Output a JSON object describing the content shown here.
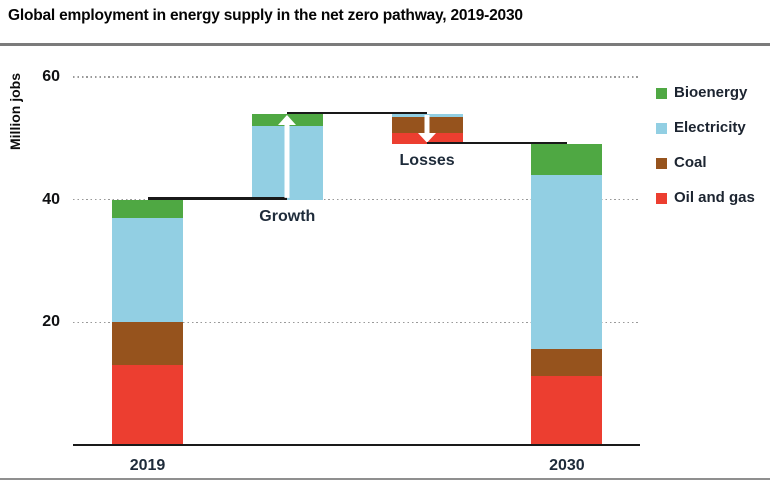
{
  "title": "Global employment in energy supply in the net zero pathway, 2019-2030",
  "chart_data": {
    "type": "bar",
    "subtype": "stacked-waterfall",
    "title": "Global employment in energy supply in the net zero pathway, 2019-2030",
    "ylabel": "Million jobs",
    "xlabel": "",
    "ylim": [
      0,
      60
    ],
    "yticks": [
      20,
      40,
      60
    ],
    "grid": "horizontal-dotted",
    "legend_position": "right",
    "legend": [
      "Bioenergy",
      "Electricity",
      "Coal",
      "Oil and gas"
    ],
    "series_colors": {
      "Bioenergy": "#4fa843",
      "Electricity": "#92cfe3",
      "Coal": "#96531d",
      "Oil and gas": "#ec3e30"
    },
    "bars": [
      {
        "axis_label": "2019",
        "annotation": null,
        "arrow": null,
        "base": 0,
        "total": 40,
        "segments": [
          [
            "Oil and gas",
            13
          ],
          [
            "Coal",
            7
          ],
          [
            "Electricity",
            17
          ],
          [
            "Bioenergy",
            3
          ]
        ]
      },
      {
        "axis_label": null,
        "annotation": "Growth",
        "arrow": "up",
        "base": 40,
        "total": 54,
        "segments": [
          [
            "Electricity",
            12
          ],
          [
            "Bioenergy",
            2
          ]
        ]
      },
      {
        "axis_label": null,
        "annotation": "Losses",
        "arrow": "down",
        "base": 49,
        "total": 54,
        "segments": [
          [
            "Oil and gas",
            1.8
          ],
          [
            "Coal",
            2.6
          ],
          [
            "Electricity",
            0.6
          ]
        ]
      },
      {
        "axis_label": "2030",
        "annotation": null,
        "arrow": null,
        "base": 0,
        "total": 49,
        "segments": [
          [
            "Oil and gas",
            11.2
          ],
          [
            "Coal",
            4.4
          ],
          [
            "Electricity",
            28.4
          ],
          [
            "Bioenergy",
            5
          ]
        ]
      }
    ],
    "connectors": [
      {
        "level": 40,
        "from": 0,
        "to": 1
      },
      {
        "level": 54,
        "from": 1,
        "to": 2
      },
      {
        "level": 49,
        "from": 2,
        "to": 3
      }
    ],
    "arrow_color": "#ffffff",
    "connector_color": "#191919"
  }
}
